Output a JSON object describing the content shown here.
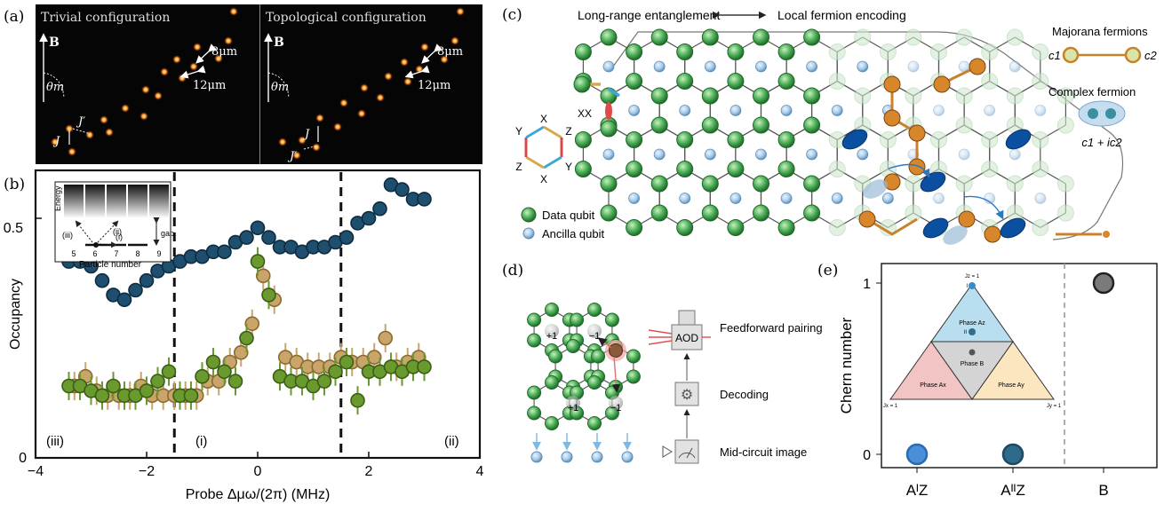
{
  "panel_a": {
    "label": "(a)",
    "left": {
      "title": "Trivial configuration",
      "B": "B",
      "theta": "θm",
      "d8": "8μm",
      "d12": "12μm",
      "J": "J",
      "Jp": "J′"
    },
    "right": {
      "title": "Topological configuration",
      "B": "B",
      "theta": "θm",
      "d8": "8μm",
      "d12": "12μm",
      "J": "J",
      "Jp": "J′"
    }
  },
  "panel_b": {
    "label": "(b)",
    "region_labels": [
      "(iii)",
      "(i)",
      "(ii)"
    ],
    "inset": {
      "ylabel": "Energy",
      "xlabel": "Particle number",
      "xticks": [
        "5",
        "6",
        "7",
        "8",
        "9"
      ],
      "marks": [
        "(iii)",
        "(i)",
        "(ii)"
      ],
      "gap": "gap"
    }
  },
  "chart_data": {
    "type": "scatter",
    "xlabel": "Probe Δμω/(2π) (MHz)",
    "ylabel": "Occupancy",
    "xlim": [
      -4,
      4
    ],
    "ylim": [
      0,
      0.6
    ],
    "xticks": [
      "−4",
      "−2",
      "0",
      "2",
      "4"
    ],
    "yticks": [
      "0",
      "0.5"
    ],
    "vlines": [
      -1.5,
      1.5
    ],
    "series": [
      {
        "name": "",
        "color": "#1e4f6e",
        "x": [
          -3.4,
          -3.2,
          -3.0,
          -2.8,
          -2.6,
          -2.4,
          -2.2,
          -2.0,
          -1.8,
          -1.6,
          -1.4,
          -1.2,
          -1.0,
          -0.8,
          -0.6,
          -0.4,
          -0.2,
          0.0,
          0.2,
          0.4,
          0.6,
          0.8,
          1.0,
          1.2,
          1.4,
          1.6,
          1.8,
          2.0,
          2.2,
          2.4,
          2.6,
          2.8,
          3.0
        ],
        "y": [
          0.41,
          0.41,
          0.4,
          0.37,
          0.34,
          0.33,
          0.35,
          0.37,
          0.39,
          0.4,
          0.41,
          0.42,
          0.42,
          0.43,
          0.43,
          0.45,
          0.46,
          0.48,
          0.46,
          0.44,
          0.44,
          0.43,
          0.44,
          0.44,
          0.45,
          0.46,
          0.49,
          0.5,
          0.52,
          0.57,
          0.56,
          0.54,
          0.54
        ]
      },
      {
        "name": "",
        "color": "#c9a56a",
        "x": [
          -3.3,
          -3.1,
          -2.9,
          -2.7,
          -2.5,
          -2.3,
          -2.1,
          -1.9,
          -1.7,
          -1.5,
          -1.3,
          -1.1,
          -0.9,
          -0.7,
          -0.5,
          -0.3,
          -0.1,
          0.1,
          0.3,
          0.5,
          0.7,
          0.9,
          1.1,
          1.3,
          1.5,
          1.7,
          1.9,
          2.1,
          2.3,
          2.5,
          2.7,
          2.9
        ],
        "y": [
          0.15,
          0.17,
          0.14,
          0.13,
          0.13,
          0.13,
          0.15,
          0.13,
          0.13,
          0.13,
          0.13,
          0.13,
          0.16,
          0.16,
          0.2,
          0.22,
          0.28,
          0.38,
          0.33,
          0.21,
          0.2,
          0.19,
          0.19,
          0.19,
          0.21,
          0.2,
          0.2,
          0.21,
          0.25,
          0.19,
          0.2,
          0.21
        ]
      },
      {
        "name": "",
        "color": "#6a9a2e",
        "x": [
          -3.4,
          -3.2,
          -3.0,
          -2.8,
          -2.6,
          -2.4,
          -2.2,
          -2.0,
          -1.8,
          -1.6,
          -1.4,
          -1.2,
          -1.0,
          -0.8,
          -0.6,
          -0.4,
          -0.2,
          0.0,
          0.2,
          0.4,
          0.6,
          0.8,
          1.0,
          1.2,
          1.4,
          1.6,
          1.8,
          2.0,
          2.2,
          2.4,
          2.6,
          2.8,
          3.0
        ],
        "y": [
          0.15,
          0.15,
          0.14,
          0.13,
          0.15,
          0.13,
          0.13,
          0.14,
          0.16,
          0.18,
          0.13,
          0.13,
          0.17,
          0.2,
          0.18,
          0.16,
          0.25,
          0.41,
          0.34,
          0.17,
          0.16,
          0.16,
          0.15,
          0.16,
          0.18,
          0.2,
          0.12,
          0.18,
          0.18,
          0.19,
          0.18,
          0.19,
          0.19
        ]
      }
    ]
  },
  "panel_c": {
    "label": "(c)",
    "top_left": "Long-range entanglement",
    "arrow": "↔",
    "top_right": "Local fermion encoding",
    "majorana_title": "Majorana fermions",
    "c1": "c1",
    "c2": "c2",
    "complex_title": "Complex fermion",
    "complex_formula": "c1 + ic2",
    "legend_data": "Data qubit",
    "legend_ancilla": "Ancilla qubit",
    "hex_labels": [
      "X",
      "Y",
      "Z",
      "Z",
      "Y",
      "X"
    ],
    "xx": "XX"
  },
  "panel_d": {
    "label": "(d)",
    "stabilizers": [
      "+1",
      "−1",
      "+1",
      "−1"
    ],
    "aod": "AOD",
    "feedforward": "Feedforward pairing",
    "decoding": "Decoding",
    "midcircuit": "Mid-circuit image"
  },
  "panel_e": {
    "label": "(e)",
    "ylabel": "Chern number",
    "yticks": [
      "0",
      "1"
    ],
    "categories": [
      "AᴵZ",
      "AᴵᴵZ",
      "B"
    ],
    "chern": [
      0,
      0,
      1
    ],
    "triangle": {
      "phase_az": "Phase Az",
      "phase_b": "Phase B",
      "phase_ax": "Phase Ax",
      "phase_ay": "Phase Ay",
      "jz": "Jz = 1",
      "jx": "Jx = 1",
      "jy": "Jy = 1",
      "m1": "I",
      "m2": "II"
    }
  }
}
